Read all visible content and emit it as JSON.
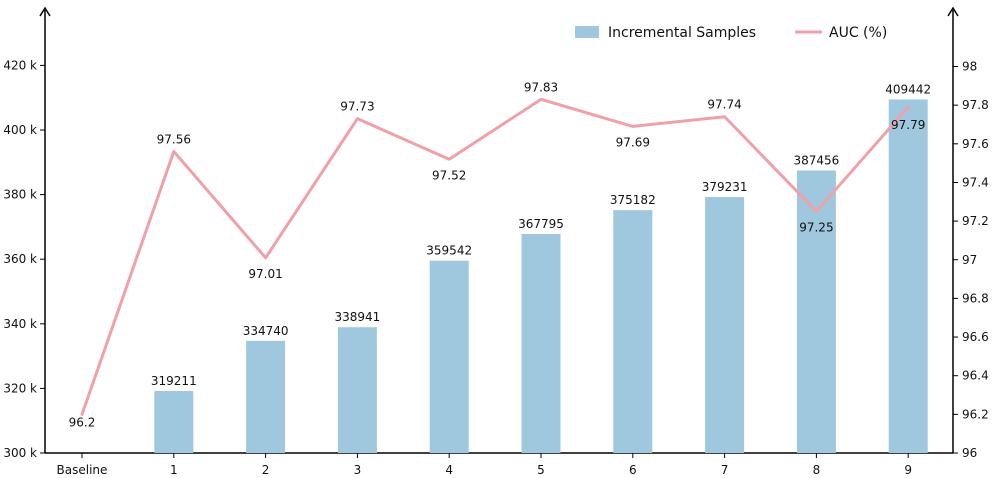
{
  "chart_data": {
    "type": "bar",
    "title": "",
    "xlabel": "",
    "categories": [
      "Baseline",
      "1",
      "2",
      "3",
      "4",
      "5",
      "6",
      "7",
      "8",
      "9"
    ],
    "series": [
      {
        "name": "Incremental Samples",
        "type": "bar",
        "axis": "left",
        "color": "#9fc7dd",
        "values": [
          null,
          319211,
          334740,
          338941,
          359542,
          367795,
          375182,
          379231,
          387456,
          409442
        ],
        "labels": [
          "",
          "319211",
          "334740",
          "338941",
          "359542",
          "367795",
          "375182",
          "379231",
          "387456",
          "409442"
        ]
      },
      {
        "name": "AUC (%)",
        "type": "line",
        "axis": "right",
        "color": "#f0a0a8",
        "values": [
          96.2,
          97.56,
          97.01,
          97.73,
          97.52,
          97.83,
          97.69,
          97.74,
          97.25,
          97.79
        ],
        "labels": [
          "96.2",
          "97.56",
          "97.01",
          "97.73",
          "97.52",
          "97.83",
          "97.69",
          "97.74",
          "97.25",
          "97.79"
        ]
      }
    ],
    "y_left": {
      "ylim": [
        300000,
        430000
      ],
      "ticks": [
        300000,
        320000,
        340000,
        360000,
        380000,
        400000,
        420000
      ],
      "tick_labels": [
        "300 k",
        "320 k",
        "340 k",
        "360 k",
        "380 k",
        "400 k",
        "420 k"
      ]
    },
    "y_right": {
      "ylim": [
        96,
        98.2
      ],
      "ticks": [
        96,
        96.2,
        96.4,
        96.6,
        96.8,
        97,
        97.2,
        97.4,
        97.6,
        97.8,
        98
      ],
      "tick_labels": [
        "96",
        "96.2",
        "96.4",
        "96.6",
        "96.8",
        "97",
        "97.2",
        "97.4",
        "97.6",
        "97.8",
        "98"
      ]
    },
    "legend": {
      "position": "top-right",
      "entries": [
        "Incremental Samples",
        "AUC (%)"
      ]
    },
    "grid": false
  }
}
